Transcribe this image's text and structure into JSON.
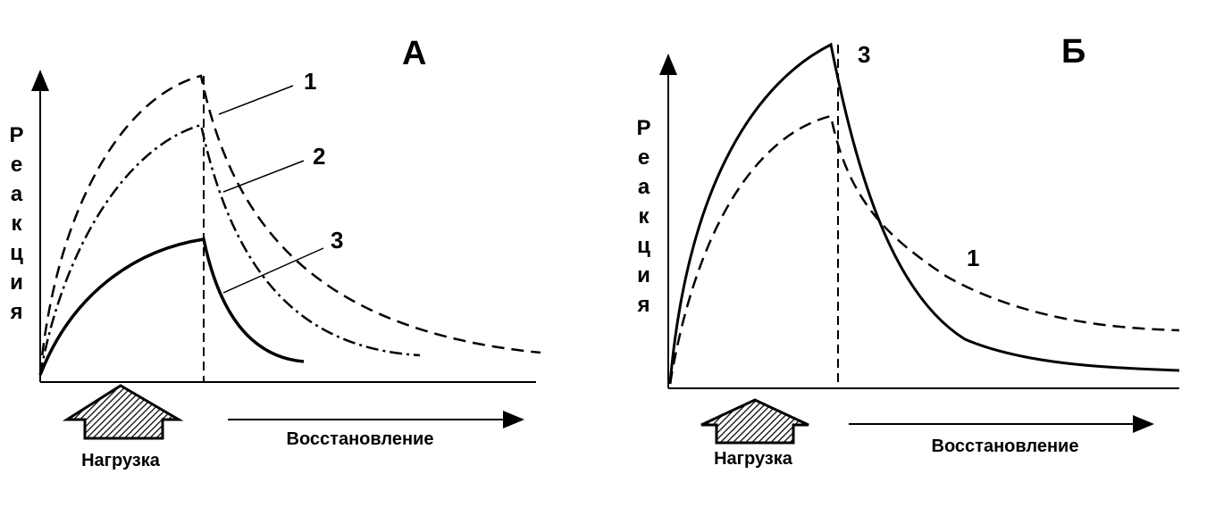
{
  "panels": [
    {
      "label": "А",
      "y_axis_label": "Реакция",
      "curve_labels": [
        "1",
        "2",
        "3"
      ],
      "load_label": "Нагрузка",
      "recovery_label": "Восстановление"
    },
    {
      "label": "Б",
      "y_axis_label": "Реакция",
      "curve_labels": [
        "3",
        "1"
      ],
      "load_label": "Нагрузка",
      "recovery_label": "Восстановление"
    }
  ]
}
